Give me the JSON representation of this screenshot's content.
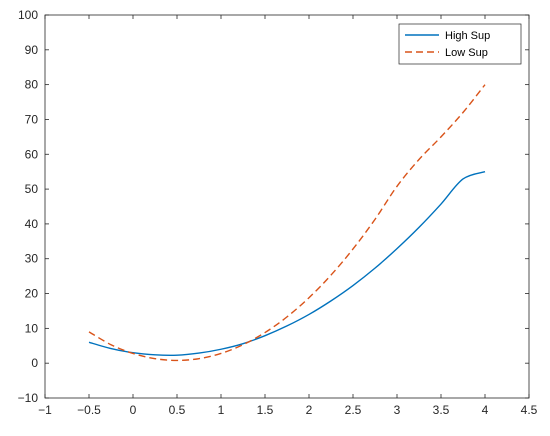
{
  "chart_data": {
    "type": "line",
    "title": "",
    "xlabel": "",
    "ylabel": "",
    "xlim": [
      -1,
      4.5
    ],
    "ylim": [
      -10,
      100
    ],
    "xticks": [
      -1,
      -0.5,
      0,
      0.5,
      1,
      1.5,
      2,
      2.5,
      3,
      3.5,
      4,
      4.5
    ],
    "xtick_labels": [
      "−1",
      "−0.5",
      "0",
      "0.5",
      "1",
      "1.5",
      "2",
      "2.5",
      "3",
      "3.5",
      "4",
      "4.5"
    ],
    "yticks": [
      -10,
      0,
      10,
      20,
      30,
      40,
      50,
      60,
      70,
      80,
      90,
      100
    ],
    "ytick_labels": [
      "−10",
      "0",
      "10",
      "20",
      "30",
      "40",
      "50",
      "60",
      "70",
      "80",
      "90",
      "100"
    ],
    "grid": false,
    "legend_position": "top-right",
    "x": [
      -0.5,
      -0.25,
      0,
      0.25,
      0.5,
      0.75,
      1,
      1.25,
      1.5,
      1.75,
      2,
      2.25,
      2.5,
      2.75,
      3,
      3.25,
      3.5,
      3.75,
      4
    ],
    "series": [
      {
        "name": "High Sup",
        "style": "solid",
        "color": "#0072BD",
        "values": [
          6.0,
          4.2,
          3.0,
          2.4,
          2.3,
          2.9,
          4.0,
          5.6,
          7.9,
          10.7,
          14.0,
          17.9,
          22.3,
          27.3,
          32.9,
          39.0,
          45.7,
          52.9,
          55.0
        ]
      },
      {
        "name": "Low Sup",
        "style": "dashed",
        "color": "#D95319",
        "values": [
          9.0,
          5.3,
          2.8,
          1.3,
          0.8,
          1.3,
          2.8,
          5.3,
          8.8,
          13.3,
          18.8,
          25.3,
          32.8,
          41.3,
          50.8,
          58.5,
          65.0,
          72.0,
          80.0
        ]
      }
    ]
  },
  "colors": {
    "axes": "#262626",
    "background": "#ffffff"
  }
}
